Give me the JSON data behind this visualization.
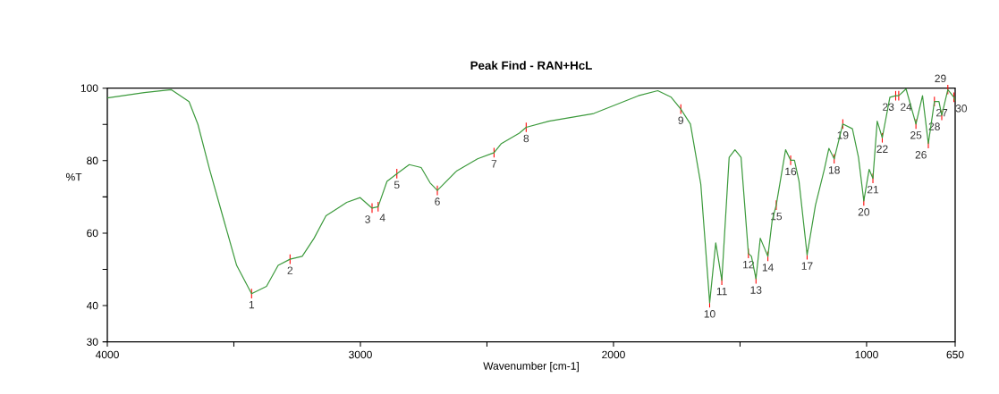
{
  "chart_data": {
    "type": "line",
    "title": "Peak Find - RAN+HcL",
    "xlabel": "Wavenumber [cm-1]",
    "ylabel": "%T",
    "xlim": [
      4000,
      650
    ],
    "ylim": [
      30,
      100
    ],
    "xticks": [
      4000,
      {
        "value": 3500,
        "label": null
      },
      3000,
      {
        "value": 2500,
        "label": null
      },
      2000,
      {
        "value": 1500,
        "label": null
      },
      1000,
      650
    ],
    "yticks": [
      30,
      40,
      {
        "value": 50,
        "label": null
      },
      60,
      {
        "value": 70,
        "label": null
      },
      80,
      {
        "value": 90,
        "label": null
      },
      100
    ],
    "grid": false,
    "marker": "none",
    "line_style": "solid",
    "series": [
      {
        "color": "#3c9a3c",
        "x": [
          4000,
          3854,
          3748,
          3677,
          3642,
          3596,
          3536,
          3489,
          3430,
          3371,
          3325,
          3278,
          3230,
          3183,
          3136,
          3089,
          3054,
          3001,
          2954,
          2930,
          2895,
          2856,
          2807,
          2760,
          2725,
          2696,
          2619,
          2537,
          2472,
          2443,
          2372,
          2345,
          2255,
          2078,
          1902,
          1825,
          1772,
          1734,
          1696,
          1655,
          1620,
          1596,
          1572,
          1543,
          1520,
          1496,
          1467,
          1455,
          1437,
          1420,
          1390,
          1373,
          1357,
          1320,
          1300,
          1285,
          1267,
          1235,
          1202,
          1167,
          1149,
          1128,
          1094,
          1056,
          1032,
          1011,
          990,
          975,
          958,
          938,
          908,
          885,
          873,
          844,
          805,
          779,
          756,
          732,
          714,
          703,
          679,
          655,
          650
        ],
        "values": [
          97.3,
          98.8,
          99.6,
          96.3,
          90,
          77.6,
          62.7,
          51.1,
          43.3,
          45.3,
          51.1,
          52.8,
          53.6,
          58.6,
          64.8,
          66.9,
          68.5,
          69.8,
          66.9,
          67.3,
          74.3,
          76.4,
          78.9,
          78.1,
          73.9,
          71.8,
          77.2,
          80.5,
          82.2,
          84.7,
          87.6,
          89.2,
          90.9,
          93.0,
          97.9,
          99.3,
          97.5,
          94.2,
          90.1,
          73.5,
          40.8,
          57.3,
          47.0,
          80.9,
          83.0,
          80.9,
          54.4,
          53.6,
          47.4,
          58.6,
          53.6,
          63.5,
          67.7,
          83.0,
          80.1,
          80.1,
          74.3,
          54.0,
          67.7,
          77.6,
          83.4,
          80.5,
          90.1,
          88.8,
          80.9,
          68.9,
          77.6,
          75.1,
          90.9,
          86.3,
          97.5,
          97.9,
          97.9,
          99.8,
          90.1,
          97.9,
          84.7,
          96.3,
          96.3,
          92.5,
          99.6,
          97.5,
          96.5
        ]
      }
    ],
    "annotations": [
      {
        "text": "1",
        "x": 3430,
        "y": 43.3
      },
      {
        "text": "2",
        "x": 3278,
        "y": 52.8
      },
      {
        "text": "3",
        "x": 2954,
        "y": 66.9
      },
      {
        "text": "4",
        "x": 2930,
        "y": 67.3
      },
      {
        "text": "5",
        "x": 2856,
        "y": 76.4
      },
      {
        "text": "6",
        "x": 2696,
        "y": 71.8
      },
      {
        "text": "7",
        "x": 2472,
        "y": 82.2
      },
      {
        "text": "8",
        "x": 2345,
        "y": 89.2
      },
      {
        "text": "9",
        "x": 1734,
        "y": 94.2
      },
      {
        "text": "10",
        "x": 1620,
        "y": 40.8
      },
      {
        "text": "11",
        "x": 1572,
        "y": 47.0
      },
      {
        "text": "12",
        "x": 1467,
        "y": 54.4
      },
      {
        "text": "13",
        "x": 1437,
        "y": 47.4
      },
      {
        "text": "14",
        "x": 1390,
        "y": 53.6
      },
      {
        "text": "15",
        "x": 1357,
        "y": 67.7
      },
      {
        "text": "16",
        "x": 1300,
        "y": 80.1
      },
      {
        "text": "17",
        "x": 1235,
        "y": 54.0
      },
      {
        "text": "18",
        "x": 1128,
        "y": 80.5
      },
      {
        "text": "19",
        "x": 1094,
        "y": 90.1
      },
      {
        "text": "20",
        "x": 1011,
        "y": 68.9
      },
      {
        "text": "21",
        "x": 975,
        "y": 75.1
      },
      {
        "text": "22",
        "x": 938,
        "y": 86.3
      },
      {
        "text": "23",
        "x": 885,
        "y": 97.9
      },
      {
        "text": "24",
        "x": 873,
        "y": 97.9
      },
      {
        "text": "25",
        "x": 805,
        "y": 90.1
      },
      {
        "text": "26",
        "x": 756,
        "y": 84.7
      },
      {
        "text": "27",
        "x": 732,
        "y": 96.3
      },
      {
        "text": "28",
        "x": 703,
        "y": 92.5
      },
      {
        "text": "29",
        "x": 679,
        "y": 99.6
      },
      {
        "text": "30",
        "x": 655,
        "y": 97.5
      }
    ]
  }
}
